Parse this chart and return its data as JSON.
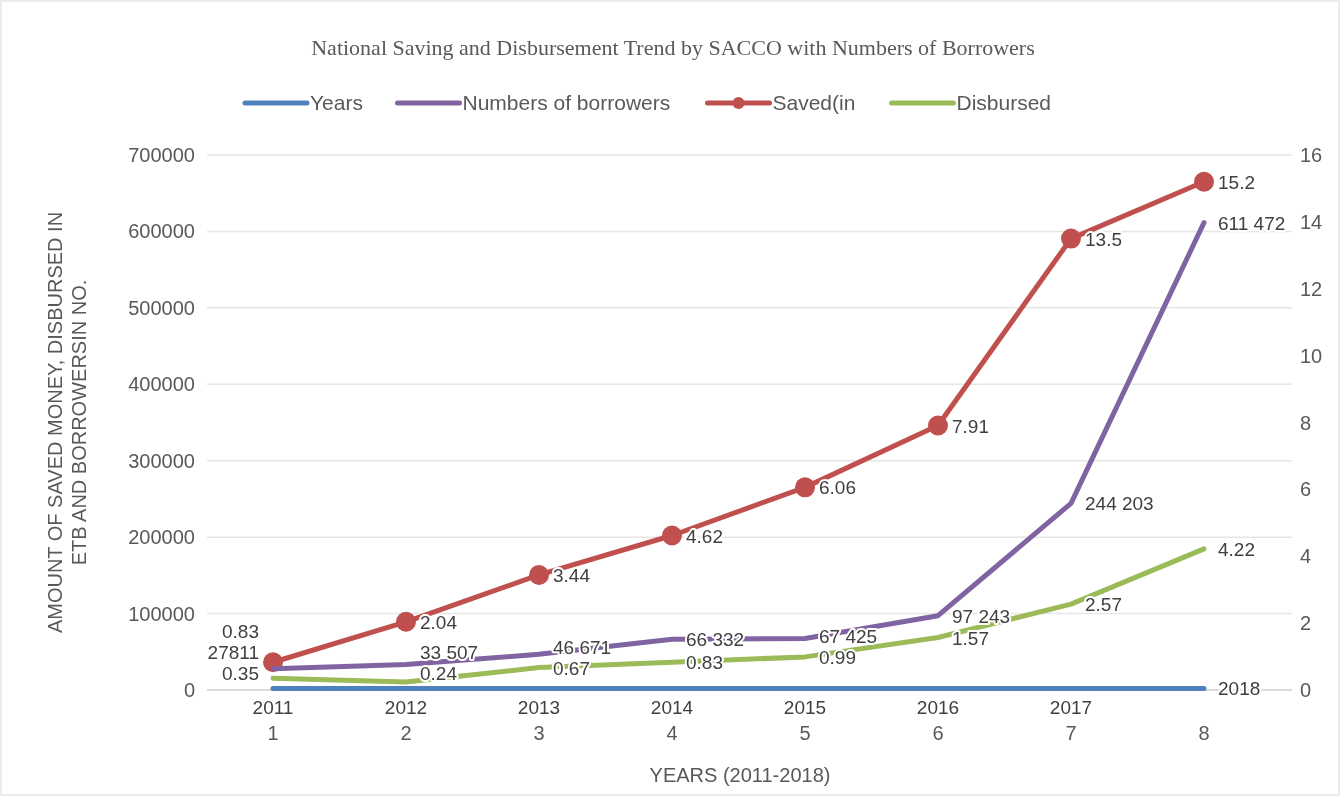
{
  "chart_data": {
    "type": "line",
    "title": "National Saving and Disbursement Trend by SACCO with Numbers of Borrowers",
    "xlabel": "YEARS (2011-2018)",
    "ylabel": "AMOUNT OF SAVED MONEY, DISBURSED IN ETB AND BORROWERSIN NO.",
    "categories": [
      "1",
      "2",
      "3",
      "4",
      "5",
      "6",
      "7",
      "8"
    ],
    "series": [
      {
        "name": "Years",
        "color": "#4f81bd",
        "marker": "none",
        "values": [
          2011,
          2012,
          2013,
          2014,
          2015,
          2016,
          2017,
          2018
        ],
        "value_labels": [
          "2011",
          "2012",
          "2013",
          "2014",
          "2015",
          "2016",
          "2017",
          "2018"
        ]
      },
      {
        "name": "Numbers of borrowers",
        "color": "#8064a2",
        "marker": "none",
        "values": [
          27811,
          33507,
          46671,
          66332,
          67425,
          97243,
          244203,
          611472
        ],
        "value_labels": [
          "27811",
          "33 507",
          "46 671",
          "66 332",
          "67 425",
          "97 243",
          "244 203",
          "611 472"
        ]
      },
      {
        "name": "Saved(in",
        "color": "#c0504d",
        "marker": "circle",
        "axis": "y2",
        "values": [
          0.83,
          2.04,
          3.44,
          4.62,
          6.06,
          7.91,
          13.5,
          15.2
        ],
        "value_labels": [
          "0.83",
          "2.04",
          "3.44",
          "4.62",
          "6.06",
          "7.91",
          "13.5",
          "15.2"
        ]
      },
      {
        "name": "Disbursed",
        "color": "#9bbb59",
        "marker": "none",
        "axis": "y2",
        "values": [
          0.35,
          0.24,
          0.67,
          0.83,
          0.99,
          1.57,
          2.57,
          4.22
        ],
        "value_labels": [
          "0.35",
          "0.24",
          "0.67",
          "0.83",
          "0.99",
          "1.57",
          "2.57",
          "4.22"
        ]
      }
    ],
    "ylim": [
      0,
      700000
    ],
    "yticks": [
      0,
      100000,
      200000,
      300000,
      400000,
      500000,
      600000,
      700000
    ],
    "y2lim": [
      0,
      16
    ],
    "y2ticks": [
      0,
      2,
      4,
      6,
      8,
      10,
      12,
      14,
      16
    ],
    "grid": "y",
    "legend": "top",
    "line_style": "solid"
  }
}
